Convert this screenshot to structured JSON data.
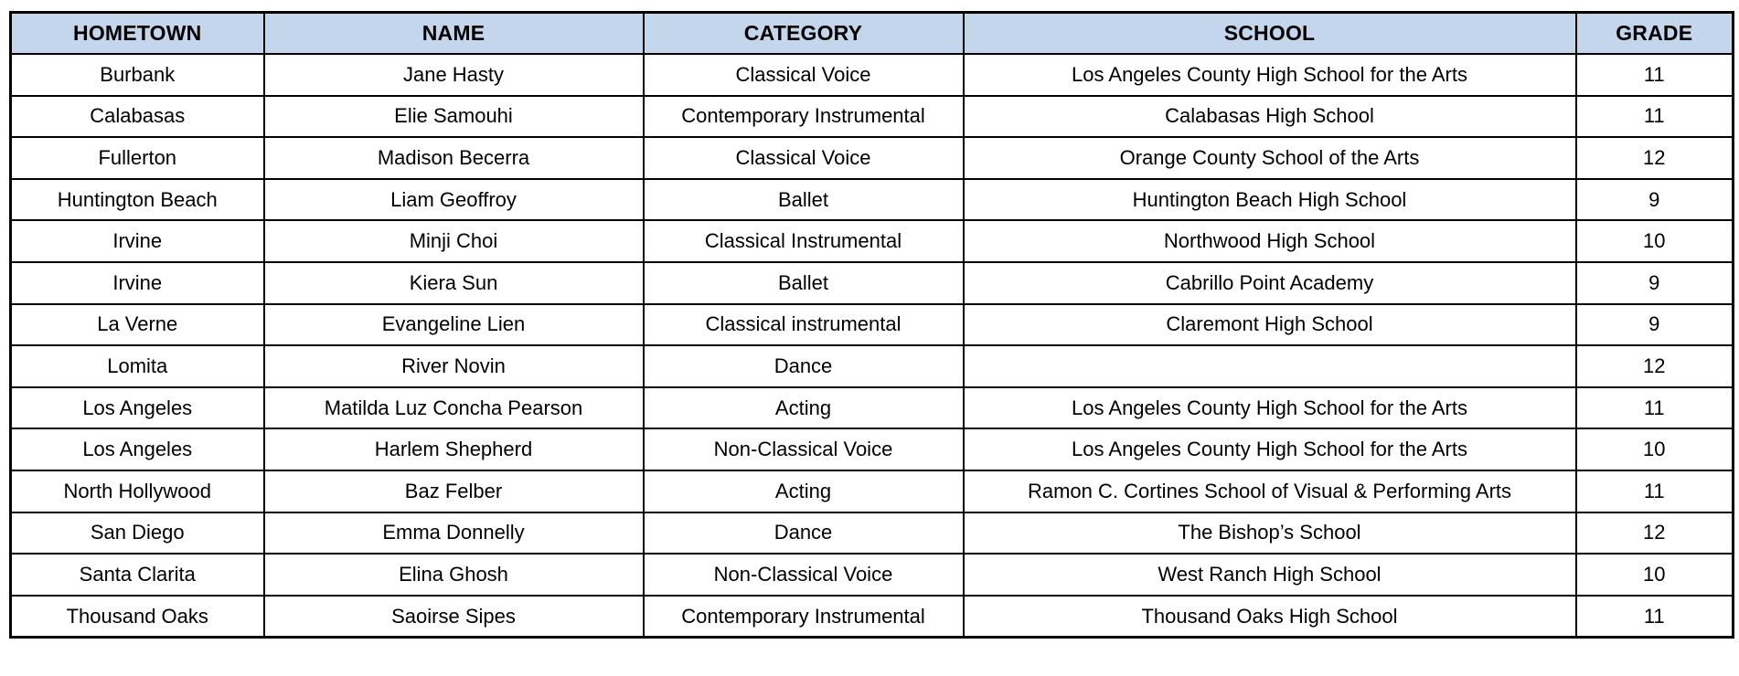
{
  "table": {
    "columns": [
      {
        "key": "hometown",
        "label": "HOMETOWN"
      },
      {
        "key": "name",
        "label": "NAME"
      },
      {
        "key": "category",
        "label": "CATEGORY"
      },
      {
        "key": "school",
        "label": "SCHOOL"
      },
      {
        "key": "grade",
        "label": "GRADE"
      }
    ],
    "rows": [
      [
        "Burbank",
        "Jane Hasty",
        "Classical Voice",
        "Los Angeles County High School for the Arts",
        "11"
      ],
      [
        "Calabasas",
        "Elie Samouhi",
        "Contemporary Instrumental",
        "Calabasas High School",
        "11"
      ],
      [
        "Fullerton",
        "Madison Becerra",
        "Classical Voice",
        "Orange County School of the Arts",
        "12"
      ],
      [
        "Huntington Beach",
        "Liam Geoffroy",
        "Ballet",
        "Huntington Beach High School",
        "9"
      ],
      [
        "Irvine",
        "Minji Choi",
        "Classical Instrumental",
        "Northwood High School",
        "10"
      ],
      [
        "Irvine",
        "Kiera Sun",
        "Ballet",
        "Cabrillo Point Academy",
        "9"
      ],
      [
        "La Verne",
        "Evangeline Lien",
        "Classical instrumental",
        "Claremont High School",
        "9"
      ],
      [
        "Lomita",
        "River Novin",
        "Dance",
        "",
        "12"
      ],
      [
        "Los Angeles",
        "Matilda Luz Concha Pearson",
        "Acting",
        "Los Angeles County High School for the Arts",
        "11"
      ],
      [
        "Los Angeles",
        "Harlem Shepherd",
        "Non-Classical Voice",
        "Los Angeles County High School for the Arts",
        "10"
      ],
      [
        "North Hollywood",
        "Baz Felber",
        "Acting",
        "Ramon C. Cortines School of Visual & Performing Arts",
        "11"
      ],
      [
        "San Diego",
        "Emma Donnelly",
        "Dance",
        "The Bishop’s School",
        "12"
      ],
      [
        "Santa Clarita",
        "Elina Ghosh",
        "Non-Classical Voice",
        "West Ranch High School",
        "10"
      ],
      [
        "Thousand Oaks",
        "Saoirse Sipes",
        "Contemporary Instrumental",
        "Thousand Oaks High School",
        "11"
      ]
    ],
    "colors": {
      "header_bg": "#c3d6ec",
      "border": "#000000",
      "row_bg": "#ffffff",
      "text": "#000000"
    }
  }
}
